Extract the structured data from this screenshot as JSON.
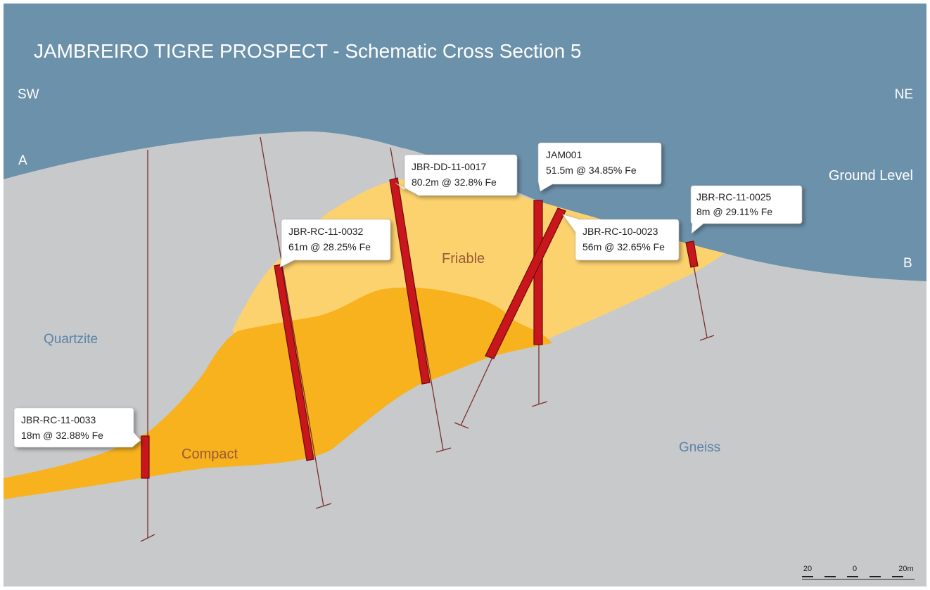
{
  "title": "JAMBREIRO TIGRE PROSPECT - Schematic Cross Section 5",
  "directions": {
    "left": "SW",
    "right": "NE"
  },
  "section_ends": {
    "start": "A",
    "end": "B"
  },
  "ground_label": "Ground Level",
  "units": [
    {
      "label": "Quartzite"
    },
    {
      "label": "Friable"
    },
    {
      "label": "Compact"
    },
    {
      "label": "Gneiss"
    }
  ],
  "drill_holes": [
    {
      "id": "JBR-RC-11-0033",
      "intercept": "18m @ 32.88% Fe"
    },
    {
      "id": "JBR-RC-11-0032",
      "intercept": "61m @ 28.25% Fe"
    },
    {
      "id": "JBR-DD-11-0017",
      "intercept": "80.2m @ 32.8% Fe"
    },
    {
      "id": "JAM001",
      "intercept": "51.5m @ 34.85% Fe"
    },
    {
      "id": "JBR-RC-10-0023",
      "intercept": "56m @ 32.65% Fe"
    },
    {
      "id": "JBR-RC-11-0025",
      "intercept": "8m @ 29.11% Fe"
    }
  ],
  "scale_bar": {
    "labels": [
      "20",
      "0",
      "20m"
    ]
  }
}
